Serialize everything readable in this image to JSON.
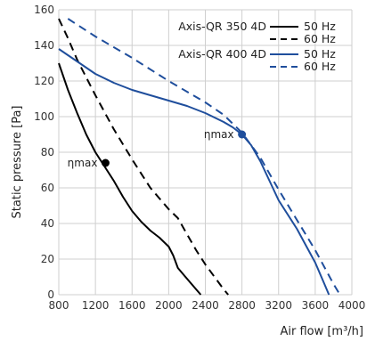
{
  "chart_data": {
    "type": "line",
    "xlabel": "Air flow [m³/h]",
    "ylabel": "Static pressure [Pa]",
    "xlim": [
      800,
      4000
    ],
    "ylim": [
      0,
      160
    ],
    "xticks": [
      "800",
      "1200",
      "1600",
      "2000",
      "2400",
      "2800",
      "3200",
      "3600",
      "4000"
    ],
    "yticks": [
      "0",
      "20",
      "40",
      "60",
      "80",
      "100",
      "120",
      "140",
      "160"
    ],
    "grid": true,
    "legend": {
      "placement": "top-right",
      "groups": [
        {
          "label": "Axis-QR 350 4D",
          "entries": [
            "50 Hz",
            "60 Hz"
          ]
        },
        {
          "label": "Axis-QR 400 4D",
          "entries": [
            "50 Hz",
            "60 Hz"
          ]
        }
      ]
    },
    "series": [
      {
        "group": "Axis-QR 350 4D",
        "name": "50 Hz",
        "color": "#000000",
        "dash": "solid",
        "x": [
          800,
          900,
          1000,
          1100,
          1200,
          1300,
          1400,
          1500,
          1600,
          1700,
          1800,
          1900,
          2000,
          2050,
          2100,
          2200,
          2300,
          2350
        ],
        "y": [
          130,
          115,
          102,
          90,
          80,
          72,
          64,
          55,
          47,
          41,
          36,
          32,
          27,
          22,
          15,
          9,
          3,
          0
        ]
      },
      {
        "group": "Axis-QR 350 4D",
        "name": "60 Hz",
        "color": "#000000",
        "dash": "dashed",
        "x": [
          800,
          900,
          1000,
          1200,
          1400,
          1600,
          1800,
          2000,
          2100,
          2200,
          2300,
          2400,
          2500,
          2600,
          2650
        ],
        "y": [
          155,
          144,
          132,
          112,
          93,
          76,
          60,
          48,
          43,
          34,
          25,
          17,
          10,
          3,
          0
        ]
      },
      {
        "group": "Axis-QR 400 4D",
        "name": "50 Hz",
        "color": "#1f4e9c",
        "dash": "solid",
        "x": [
          800,
          1000,
          1200,
          1400,
          1600,
          1800,
          2000,
          2200,
          2400,
          2600,
          2700,
          2800,
          2900,
          3000,
          3100,
          3200,
          3400,
          3600,
          3700,
          3750
        ],
        "y": [
          138,
          131,
          124,
          119,
          115,
          112,
          109,
          106,
          102,
          97,
          94,
          90,
          84,
          75,
          64,
          53,
          37,
          18,
          6,
          0
        ]
      },
      {
        "group": "Axis-QR 400 4D",
        "name": "60 Hz",
        "color": "#1f4e9c",
        "dash": "dashed",
        "x": [
          900,
          1200,
          1600,
          2000,
          2400,
          2600,
          2800,
          2900,
          3000,
          3100,
          3200,
          3400,
          3600,
          3800,
          3870
        ],
        "y": [
          155,
          145,
          133,
          120,
          108,
          101,
          91,
          84,
          77,
          68,
          59,
          42,
          25,
          6,
          0
        ]
      }
    ],
    "annotations": [
      {
        "text": "ηmax",
        "x": 1310,
        "y": 74,
        "color": "#000000"
      },
      {
        "text": "ηmax",
        "x": 2800,
        "y": 90,
        "color": "#1f4e9c"
      }
    ]
  }
}
